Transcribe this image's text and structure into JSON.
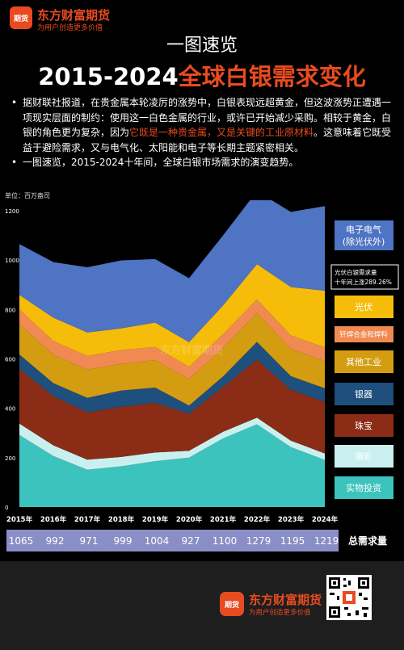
{
  "header": {
    "logo_text": "期货",
    "brand": "东方财富期货",
    "slogan": "为用户创造更多价值",
    "subtitle": "一图速览",
    "title_years": "2015-2024",
    "title_topic": "全球白银需求变化"
  },
  "intro": {
    "p1_a": "据财联社报道，在贵金属本轮凌厉的涨势中，白银表现远超黄金，但这波涨势正遭遇一项现实层面的制约：使用这一白色金属的行业，或许已开始减少采购。相较于黄金，白银的角色更为复杂，因为",
    "p1_red": "它既是一种贵金属，又是关键的工业原材料",
    "p1_b": "。这意味着它既受益于避险需求，又与电气化、太阳能和电子等长期主题紧密相关。",
    "p2": "一图速览，2015-2024十年间，全球白银市场需求的演变趋势。"
  },
  "unit_label": "单位：百万盎司",
  "watermark": "东方财富期货",
  "total_label": "总需求量",
  "callout": {
    "line1": "光伏白银需求量",
    "line2": "十年间上涨289.26%"
  },
  "colors": {
    "bg": "#000000",
    "accent": "#e84b1f"
  },
  "chart_data": {
    "type": "area",
    "stacked": true,
    "x": [
      "2015年",
      "2016年",
      "2017年",
      "2018年",
      "2019年",
      "2020年",
      "2021年",
      "2022年",
      "2023年",
      "2024年"
    ],
    "ylim": [
      0,
      1200
    ],
    "yticks": [
      0,
      200,
      400,
      600,
      800,
      1000,
      1200
    ],
    "ylabel": "单位：百万盎司",
    "series": [
      {
        "name": "实物投资",
        "color": "#3cc3bd",
        "values": [
          292,
          207,
          151,
          165,
          186,
          200,
          278,
          335,
          243,
          191
        ]
      },
      {
        "name": "摄影",
        "color": "#c9f0ee",
        "values": [
          46,
          43,
          41,
          38,
          35,
          28,
          27,
          27,
          26,
          26
        ]
      },
      {
        "name": "珠宝",
        "color": "#8b2d16",
        "values": [
          222,
          199,
          192,
          203,
          201,
          150,
          182,
          235,
          206,
          209
        ]
      },
      {
        "name": "银器",
        "color": "#1e4f7d",
        "values": [
          58,
          53,
          58,
          66,
          62,
          33,
          42,
          72,
          55,
          55
        ]
      },
      {
        "name": "其他工业",
        "color": "#d49d11",
        "values": [
          123,
          115,
          115,
          108,
          111,
          107,
          116,
          117,
          110,
          110
        ]
      },
      {
        "name": "钎焊合金和焊料",
        "color": "#f08a52",
        "values": [
          59,
          56,
          55,
          56,
          53,
          50,
          55,
          55,
          55,
          55
        ]
      },
      {
        "name": "光伏",
        "color": "#f5bd0a",
        "values": [
          59,
          94,
          95,
          88,
          99,
          100,
          116,
          143,
          196,
          230
        ]
      },
      {
        "name": "电子电气（除光伏外）",
        "color": "#4f74c4",
        "values": [
          206,
          225,
          264,
          275,
          257,
          259,
          284,
          295,
          304,
          343
        ]
      }
    ],
    "totals": [
      1065,
      992,
      971,
      999,
      1004,
      927,
      1100,
      1279,
      1195,
      1219
    ]
  }
}
